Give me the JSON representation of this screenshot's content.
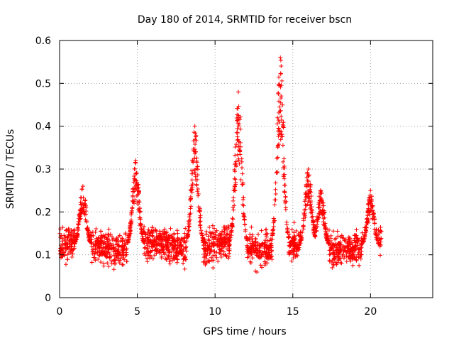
{
  "chart_data": {
    "type": "scatter",
    "title": "Day 180 of 2014, SRMTID for receiver bscn",
    "xlabel": "GPS time / hours",
    "ylabel": "SRMTID / TECUs",
    "xlim": [
      0,
      24
    ],
    "ylim": [
      0,
      0.6
    ],
    "xticks": [
      0,
      5,
      10,
      15,
      20
    ],
    "yticks": [
      0,
      0.1,
      0.2,
      0.3,
      0.4,
      0.5,
      0.6
    ],
    "xtick_labels": [
      "0",
      "5",
      "10",
      "15",
      "20"
    ],
    "ytick_labels": [
      "0",
      "0.1",
      "0.2",
      "0.3",
      "0.4",
      "0.5",
      "0.6"
    ],
    "grid": true,
    "marker": "+",
    "color": "#ff0000",
    "series": [
      {
        "name": "SRMTID",
        "x_range": [
          0,
          20.7
        ],
        "baseline_mean": 0.12,
        "baseline_spread": 0.045,
        "points_per_hour": 110,
        "peaks": [
          {
            "x": 1.5,
            "y": 0.26
          },
          {
            "x": 4.9,
            "y": 0.32
          },
          {
            "x": 8.7,
            "y": 0.4
          },
          {
            "x": 11.5,
            "y": 0.48
          },
          {
            "x": 14.2,
            "y": 0.56
          },
          {
            "x": 16.0,
            "y": 0.3
          },
          {
            "x": 16.8,
            "y": 0.25
          },
          {
            "x": 20.0,
            "y": 0.25
          }
        ],
        "min_observed": 0.03,
        "max_observed": 0.56
      }
    ]
  }
}
